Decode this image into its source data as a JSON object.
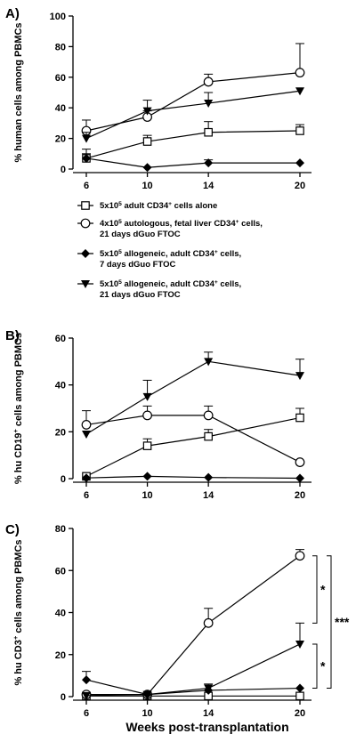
{
  "x_axis_title": "Weeks post-transplantation",
  "legend": {
    "entries": [
      {
        "marker": "square-open",
        "lines": [
          "5x10^5 adult CD34+ cells alone"
        ]
      },
      {
        "marker": "circle-open",
        "lines": [
          "4x10^5 autologous, fetal liver CD34+ cells,",
          "21 days dGuo FTOC"
        ]
      },
      {
        "marker": "diamond-filled",
        "lines": [
          "5x10^5 allogeneic, adult CD34+ cells,",
          "7 days dGuo FTOC"
        ]
      },
      {
        "marker": "triangle-down-filled",
        "lines": [
          "5x10^5 allogeneic, adult CD34+ cells,",
          "21 days dGuo FTOC"
        ]
      }
    ]
  },
  "chart_data": [
    {
      "panel": "A)",
      "type": "line",
      "ylabel": "% human cells among PBMCs",
      "ylim": [
        0,
        100
      ],
      "yticks": [
        0,
        20,
        40,
        60,
        80,
        100
      ],
      "x": [
        6,
        10,
        14,
        20
      ],
      "series": [
        {
          "marker": "square-open",
          "values": [
            7,
            18,
            24,
            25
          ],
          "err": [
            3,
            4,
            7,
            4
          ]
        },
        {
          "marker": "circle-open",
          "values": [
            25,
            34,
            57,
            63
          ],
          "err": [
            7,
            4,
            5,
            19
          ]
        },
        {
          "marker": "diamond-filled",
          "values": [
            7,
            1,
            4,
            4
          ],
          "err": [
            6,
            0,
            2,
            0
          ]
        },
        {
          "marker": "triangle-down-filled",
          "values": [
            20,
            38,
            43,
            51
          ],
          "err": [
            4,
            7,
            7,
            0
          ]
        }
      ]
    },
    {
      "panel": "B)",
      "type": "line",
      "ylabel": "% hu CD19+ cells among PBMCs",
      "ylim": [
        0,
        60
      ],
      "yticks": [
        0,
        20,
        40,
        60
      ],
      "x": [
        6,
        10,
        14,
        20
      ],
      "series": [
        {
          "marker": "square-open",
          "values": [
            1,
            14,
            18,
            26
          ],
          "err": [
            0,
            3,
            3,
            4
          ]
        },
        {
          "marker": "circle-open",
          "values": [
            23,
            27,
            27,
            7
          ],
          "err": [
            6,
            4,
            4,
            0
          ]
        },
        {
          "marker": "diamond-filled",
          "values": [
            0.3,
            1,
            0.5,
            0.2
          ],
          "err": [
            0,
            0,
            0,
            0
          ]
        },
        {
          "marker": "triangle-down-filled",
          "values": [
            19,
            35,
            50,
            44
          ],
          "err": [
            0,
            7,
            4,
            7
          ]
        }
      ]
    },
    {
      "panel": "C)",
      "type": "line",
      "ylabel": "% hu CD3+ cells among PBMCs",
      "ylim": [
        0,
        80
      ],
      "yticks": [
        0,
        20,
        40,
        60,
        80
      ],
      "x": [
        6,
        10,
        14,
        20
      ],
      "series": [
        {
          "marker": "square-open",
          "values": [
            0.3,
            0.3,
            0.3,
            0.3
          ],
          "err": [
            0,
            0,
            0,
            0
          ]
        },
        {
          "marker": "circle-open",
          "values": [
            1,
            1,
            35,
            67
          ],
          "err": [
            0,
            0,
            7,
            3
          ]
        },
        {
          "marker": "diamond-filled",
          "values": [
            8,
            1,
            3,
            4
          ],
          "err": [
            4,
            0,
            3,
            0
          ]
        },
        {
          "marker": "triangle-down-filled",
          "values": [
            0.5,
            1,
            4,
            25
          ],
          "err": [
            0,
            0,
            0,
            10
          ]
        }
      ],
      "significance": [
        {
          "label": "*",
          "between": [
            67,
            35
          ]
        },
        {
          "label": "*",
          "between": [
            25,
            4
          ]
        },
        {
          "label": "***",
          "between": [
            67,
            4
          ]
        }
      ]
    }
  ]
}
